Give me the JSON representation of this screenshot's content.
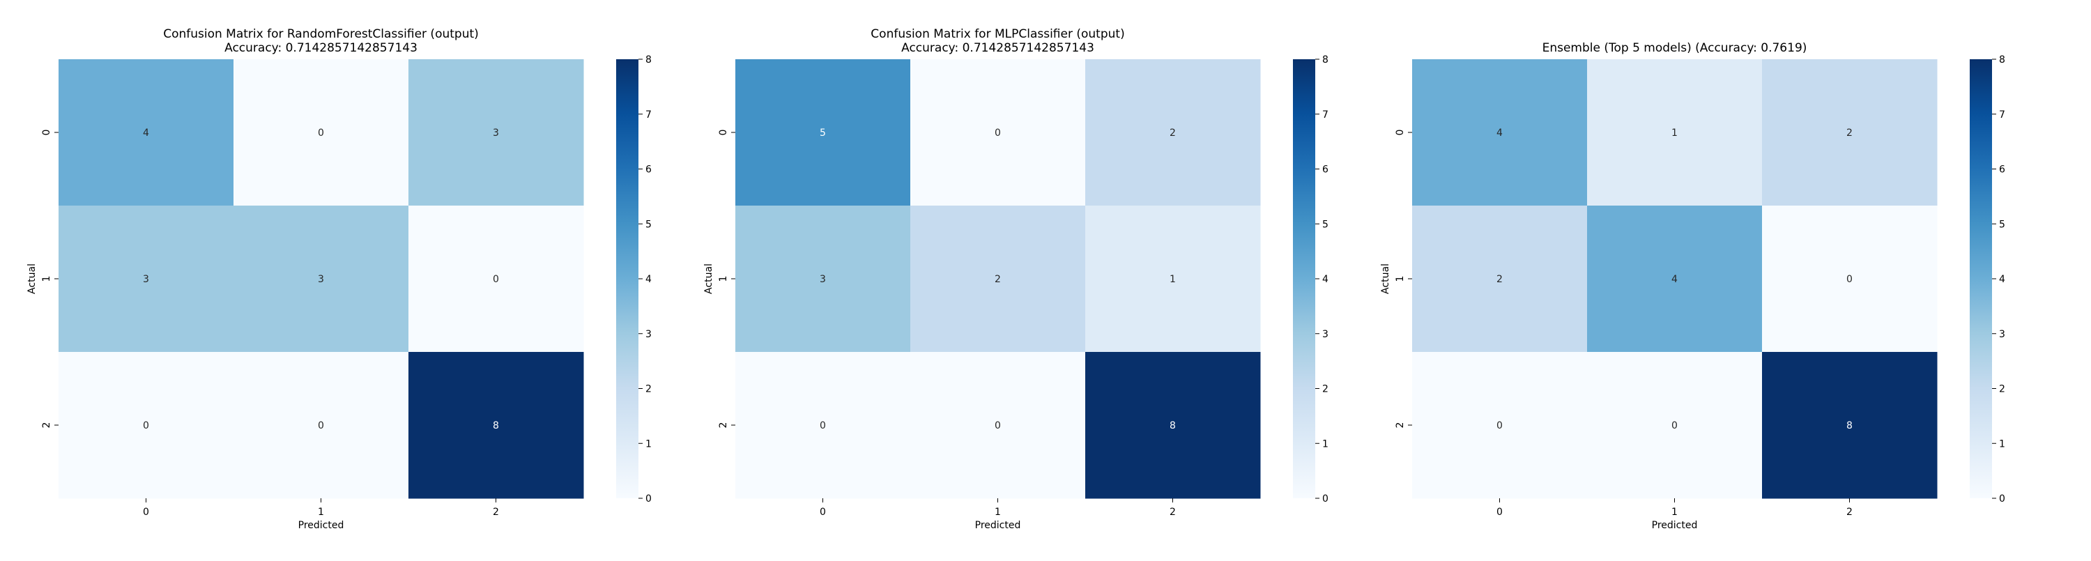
{
  "figure": {
    "background": "#ffffff"
  },
  "chart_data": [
    {
      "type": "heatmap",
      "title": "Confusion Matrix for RandomForestClassifier (output)\nAccuracy: 0.7142857142857143",
      "xlabel": "Predicted",
      "ylabel": "Actual",
      "x_categories": [
        "0",
        "1",
        "2"
      ],
      "y_categories": [
        "0",
        "1",
        "2"
      ],
      "values": [
        [
          4,
          0,
          3
        ],
        [
          3,
          3,
          0
        ],
        [
          0,
          0,
          8
        ]
      ],
      "colormap": "Blues",
      "vmin": 0,
      "vmax": 8,
      "colorbar_ticks": [
        0,
        1,
        2,
        3,
        4,
        5,
        6,
        7,
        8
      ]
    },
    {
      "type": "heatmap",
      "title": "Confusion Matrix for MLPClassifier (output)\nAccuracy: 0.7142857142857143",
      "xlabel": "Predicted",
      "ylabel": "Actual",
      "x_categories": [
        "0",
        "1",
        "2"
      ],
      "y_categories": [
        "0",
        "1",
        "2"
      ],
      "values": [
        [
          5,
          0,
          2
        ],
        [
          3,
          2,
          1
        ],
        [
          0,
          0,
          8
        ]
      ],
      "colormap": "Blues",
      "vmin": 0,
      "vmax": 8,
      "colorbar_ticks": [
        0,
        1,
        2,
        3,
        4,
        5,
        6,
        7,
        8
      ]
    },
    {
      "type": "heatmap",
      "title": "Ensemble (Top 5 models) (Accuracy: 0.7619)",
      "xlabel": "Predicted",
      "ylabel": "Actual",
      "x_categories": [
        "0",
        "1",
        "2"
      ],
      "y_categories": [
        "0",
        "1",
        "2"
      ],
      "values": [
        [
          4,
          1,
          2
        ],
        [
          2,
          4,
          0
        ],
        [
          0,
          0,
          8
        ]
      ],
      "colormap": "Blues",
      "vmin": 0,
      "vmax": 8,
      "colorbar_ticks": [
        0,
        1,
        2,
        3,
        4,
        5,
        6,
        7,
        8
      ]
    }
  ]
}
